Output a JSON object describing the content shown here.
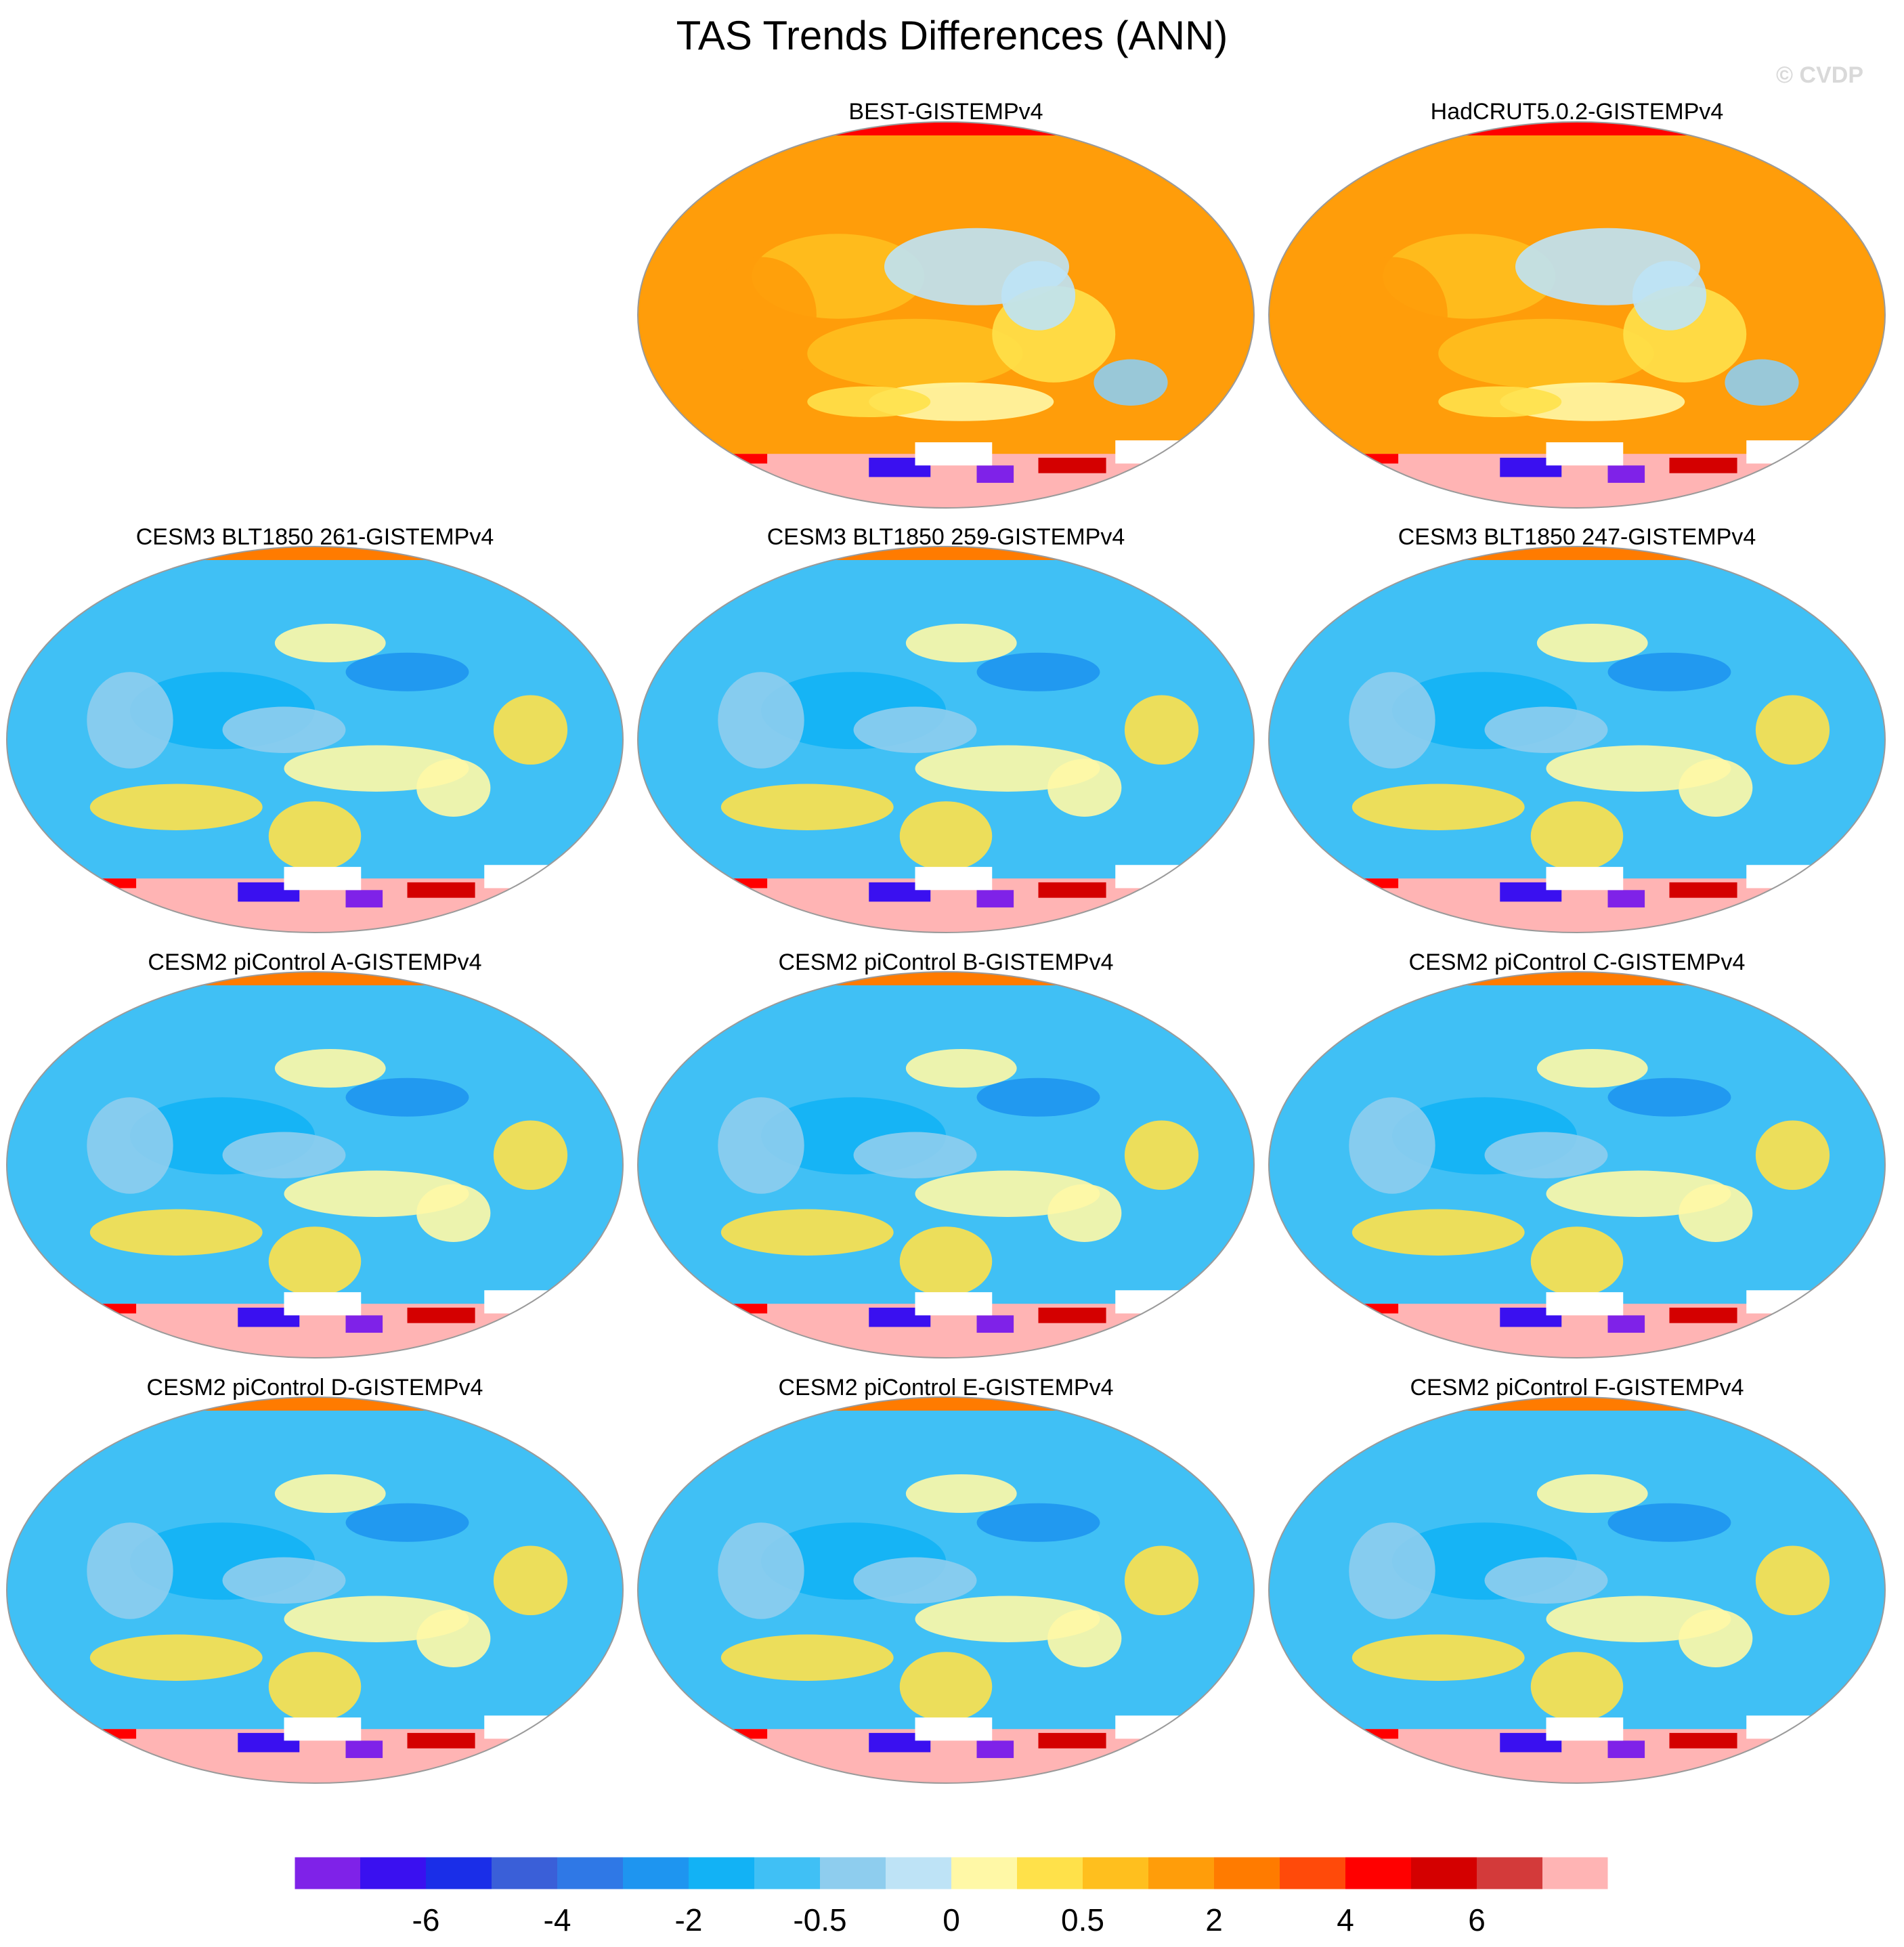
{
  "title": "TAS Trends Differences (ANN)",
  "watermark": "© CVDP",
  "panels": [
    {
      "row": 0,
      "col": 1,
      "title": "BEST-GISTEMPv4",
      "style": "warm"
    },
    {
      "row": 0,
      "col": 2,
      "title": "HadCRUT5.0.2-GISTEMPv4",
      "style": "warm"
    },
    {
      "row": 1,
      "col": 0,
      "title": "CESM3 BLT1850 261-GISTEMPv4",
      "style": "cool"
    },
    {
      "row": 1,
      "col": 1,
      "title": "CESM3 BLT1850 259-GISTEMPv4",
      "style": "cool"
    },
    {
      "row": 1,
      "col": 2,
      "title": "CESM3 BLT1850 247-GISTEMPv4",
      "style": "cool"
    },
    {
      "row": 2,
      "col": 0,
      "title": "CESM2 piControl A-GISTEMPv4",
      "style": "cool"
    },
    {
      "row": 2,
      "col": 1,
      "title": "CESM2 piControl B-GISTEMPv4",
      "style": "cool"
    },
    {
      "row": 2,
      "col": 2,
      "title": "CESM2 piControl C-GISTEMPv4",
      "style": "cool"
    },
    {
      "row": 3,
      "col": 0,
      "title": "CESM2 piControl D-GISTEMPv4",
      "style": "cool"
    },
    {
      "row": 3,
      "col": 1,
      "title": "CESM2 piControl E-GISTEMPv4",
      "style": "cool"
    },
    {
      "row": 3,
      "col": 2,
      "title": "CESM2 piControl F-GISTEMPv4",
      "style": "cool"
    }
  ],
  "colorbar": {
    "colors": [
      "#7f22e8",
      "#3a10f0",
      "#1a2ee8",
      "#3a5fd8",
      "#2f78e6",
      "#1e95f0",
      "#12b2f5",
      "#40c0f5",
      "#8ecdee",
      "#bee3f6",
      "#fff8a6",
      "#ffe14a",
      "#ffbf1e",
      "#ff9d0a",
      "#ff7b00",
      "#ff4a0a",
      "#ff0000",
      "#d40000",
      "#d33a3a",
      "#ffb4b4"
    ],
    "ticks": [
      {
        "label": "-6",
        "boundary": 2
      },
      {
        "label": "-4",
        "boundary": 4
      },
      {
        "label": "-2",
        "boundary": 6
      },
      {
        "label": "-0.5",
        "boundary": 8
      },
      {
        "label": "0",
        "boundary": 10
      },
      {
        "label": "0.5",
        "boundary": 12
      },
      {
        "label": "2",
        "boundary": 14
      },
      {
        "label": "4",
        "boundary": 16
      },
      {
        "label": "6",
        "boundary": 18
      }
    ]
  }
}
